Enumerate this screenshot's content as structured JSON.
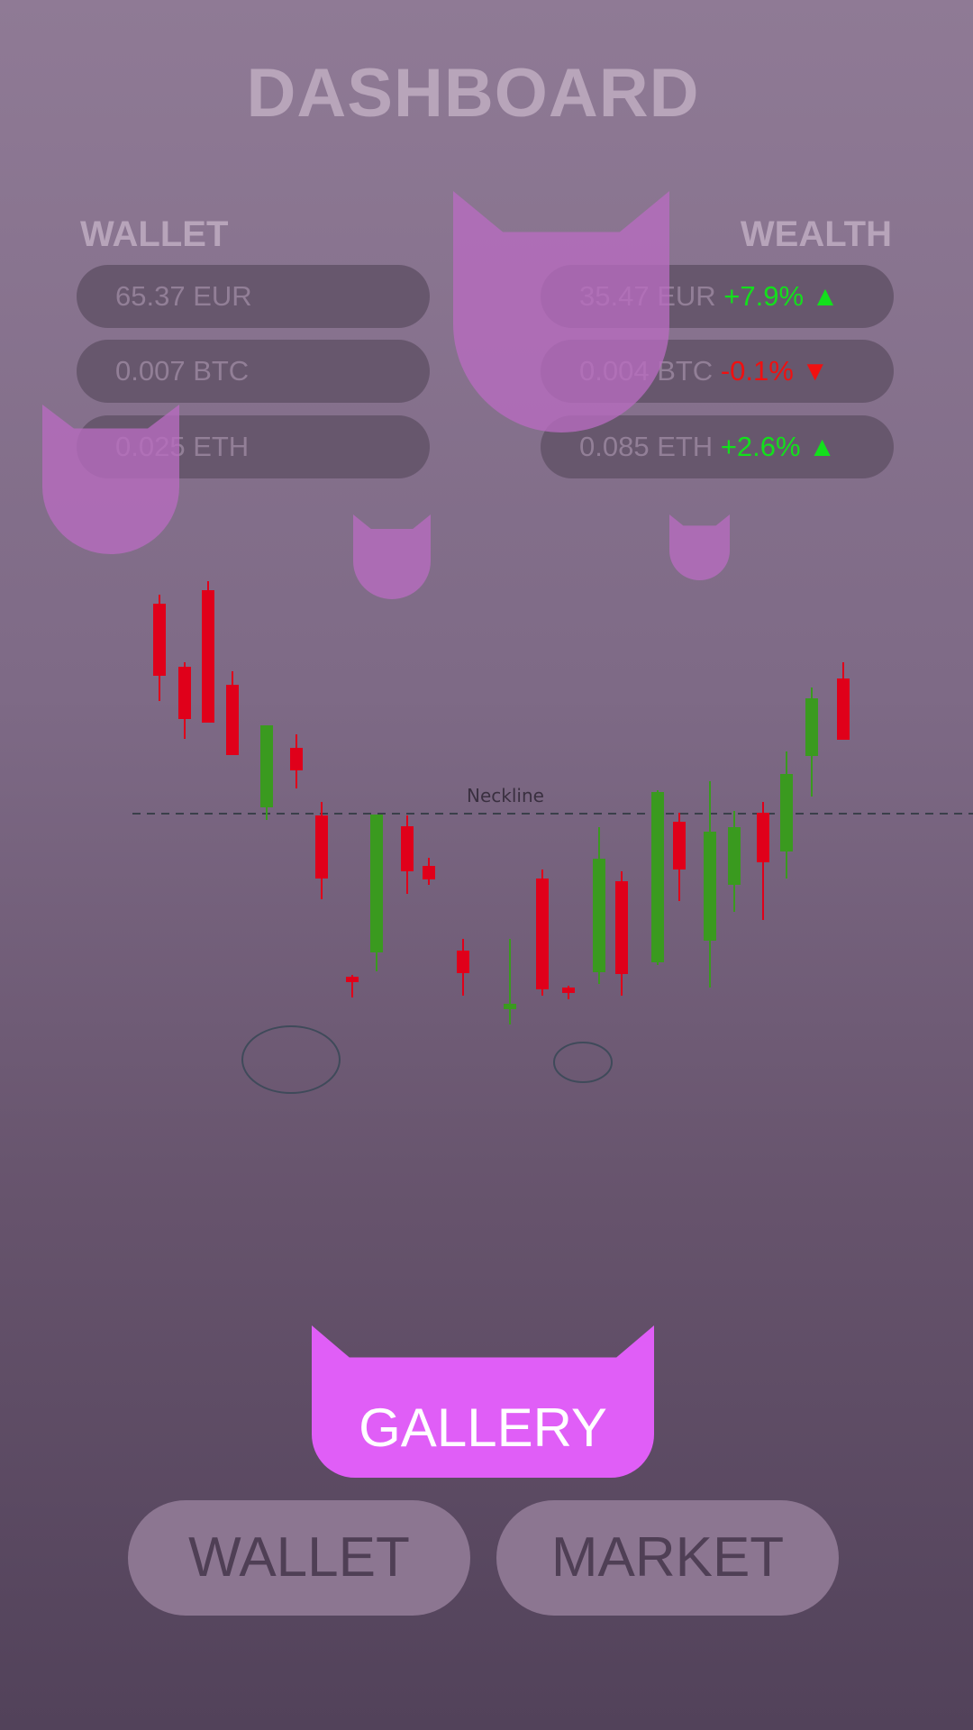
{
  "title": "DASHBOARD",
  "wallet": {
    "heading": "WALLET",
    "items": [
      "65.37 EUR",
      "0.007 BTC",
      "0.025 ETH"
    ]
  },
  "wealth": {
    "heading": "WEALTH",
    "items": [
      {
        "amount": "35.47 EUR",
        "change": "+7.9% ▲",
        "direction": "up"
      },
      {
        "amount": "0.004 BTC",
        "change": "-0.1% ▼",
        "direction": "down"
      },
      {
        "amount": "0.085 ETH",
        "change": "+2.6% ▲",
        "direction": "up"
      }
    ]
  },
  "chart": {
    "neckline_label": "Neckline",
    "colors": {
      "up": "#3a9a1f",
      "down": "#e0001a",
      "neckline": "#3a3f4a",
      "circle": "#3f4a5a"
    }
  },
  "buttons": {
    "gallery": "GALLERY",
    "wallet": "WALLET",
    "market": "MARKET"
  },
  "colors": {
    "gallery": "#e05ef7",
    "pill": "#67576d",
    "cat_icon": "#b86cc0"
  }
}
